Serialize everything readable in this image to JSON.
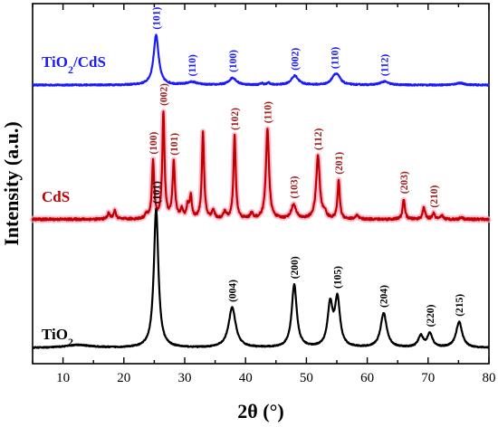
{
  "chart_data": {
    "type": "line",
    "title": "",
    "xlabel": "2θ (°)",
    "ylabel": "Intensity (a.u.)",
    "xlim": [
      5,
      80
    ],
    "xticks": [
      "10",
      "20",
      "30",
      "40",
      "50",
      "60",
      "70",
      "80"
    ],
    "ylim": [
      0,
      12.6
    ],
    "yticks_shown": false,
    "grid": false,
    "legend": "none (series labeled inline, left side)",
    "series": [
      {
        "name": "TiO2/CdS",
        "label_text": [
          "TiO",
          "2",
          "/CdS"
        ],
        "color": "#1a1aff",
        "line_width": 2.2,
        "offset": 9.75,
        "baseline_noise": 0.025,
        "peaks": [
          {
            "x": 25.3,
            "h": 1.75,
            "w": 0.5,
            "label": "(101)"
          },
          {
            "x": 31.2,
            "h": 0.1,
            "w": 1.0,
            "label": "(110)"
          },
          {
            "x": 37.9,
            "h": 0.25,
            "w": 0.7,
            "label": "(100)"
          },
          {
            "x": 42.7,
            "h": 0.06,
            "w": 0.25
          },
          {
            "x": 43.8,
            "h": 0.08,
            "w": 0.25
          },
          {
            "x": 48.1,
            "h": 0.32,
            "w": 0.7,
            "label": "(002)"
          },
          {
            "x": 54.6,
            "h": 0.26,
            "w": 0.6,
            "label": "(110)"
          },
          {
            "x": 55.2,
            "h": 0.22,
            "w": 0.6
          },
          {
            "x": 62.8,
            "h": 0.12,
            "w": 0.8,
            "label": "(112)"
          },
          {
            "x": 75.2,
            "h": 0.07,
            "w": 0.8
          }
        ],
        "peak_label_color": "#1a1aff"
      },
      {
        "name": "CdS",
        "label_text": [
          "CdS"
        ],
        "color": "#c00000",
        "line_width": 2.2,
        "glow": true,
        "offset": 5.05,
        "baseline_noise": 0.04,
        "peaks": [
          {
            "x": 17.5,
            "h": 0.2,
            "w": 0.25
          },
          {
            "x": 18.5,
            "h": 0.28,
            "w": 0.25
          },
          {
            "x": 23.7,
            "h": 0.15,
            "w": 0.25
          },
          {
            "x": 24.8,
            "h": 2.0,
            "w": 0.22,
            "label": "(100)"
          },
          {
            "x": 26.5,
            "h": 3.7,
            "w": 0.22,
            "label": "(002)"
          },
          {
            "x": 28.2,
            "h": 1.95,
            "w": 0.24,
            "label": "(101)"
          },
          {
            "x": 29.5,
            "h": 0.35,
            "w": 0.22
          },
          {
            "x": 30.5,
            "h": 0.45,
            "w": 0.22
          },
          {
            "x": 31.0,
            "h": 0.75,
            "w": 0.22
          },
          {
            "x": 33.0,
            "h": 3.0,
            "w": 0.22
          },
          {
            "x": 34.7,
            "h": 0.3,
            "w": 0.25
          },
          {
            "x": 36.6,
            "h": 0.25,
            "w": 0.25
          },
          {
            "x": 38.2,
            "h": 2.9,
            "w": 0.22,
            "label": "(102)"
          },
          {
            "x": 41.0,
            "h": 0.18,
            "w": 0.3
          },
          {
            "x": 43.6,
            "h": 3.15,
            "w": 0.3,
            "label": "(110)"
          },
          {
            "x": 47.9,
            "h": 0.5,
            "w": 0.45,
            "label": "(103)"
          },
          {
            "x": 51.9,
            "h": 2.2,
            "w": 0.35,
            "label": "(112)"
          },
          {
            "x": 53.0,
            "h": 0.2,
            "w": 0.3
          },
          {
            "x": 55.3,
            "h": 1.35,
            "w": 0.22,
            "label": "(201)"
          },
          {
            "x": 58.3,
            "h": 0.12,
            "w": 0.3
          },
          {
            "x": 66.0,
            "h": 0.7,
            "w": 0.22,
            "label": "(203)"
          },
          {
            "x": 69.3,
            "h": 0.4,
            "w": 0.25
          },
          {
            "x": 70.9,
            "h": 0.2,
            "w": 0.25,
            "label": "(210)"
          },
          {
            "x": 72.3,
            "h": 0.12,
            "w": 0.25
          },
          {
            "x": 75.5,
            "h": 0.08,
            "w": 0.25
          }
        ],
        "peak_label_color": "#a02020"
      },
      {
        "name": "TiO2",
        "label_text": [
          "TiO",
          "2"
        ],
        "color": "#000000",
        "line_width": 2.2,
        "offset": 0.55,
        "baseline_noise": 0.02,
        "peaks": [
          {
            "x": 12.5,
            "h": 0.1,
            "w": 2.5
          },
          {
            "x": 25.3,
            "h": 4.85,
            "w": 0.45,
            "label": "(101)"
          },
          {
            "x": 37.8,
            "h": 1.4,
            "w": 0.7,
            "label": "(004)"
          },
          {
            "x": 48.0,
            "h": 2.2,
            "w": 0.5,
            "label": "(200)"
          },
          {
            "x": 53.9,
            "h": 1.45,
            "w": 0.5
          },
          {
            "x": 55.1,
            "h": 1.65,
            "w": 0.5,
            "label": "(105)"
          },
          {
            "x": 62.7,
            "h": 1.2,
            "w": 0.6,
            "label": "(204)"
          },
          {
            "x": 68.8,
            "h": 0.4,
            "w": 0.5
          },
          {
            "x": 70.3,
            "h": 0.48,
            "w": 0.5,
            "label": "(220)"
          },
          {
            "x": 75.1,
            "h": 0.9,
            "w": 0.6,
            "label": "(215)"
          }
        ],
        "peak_label_color": "#000000"
      }
    ]
  }
}
